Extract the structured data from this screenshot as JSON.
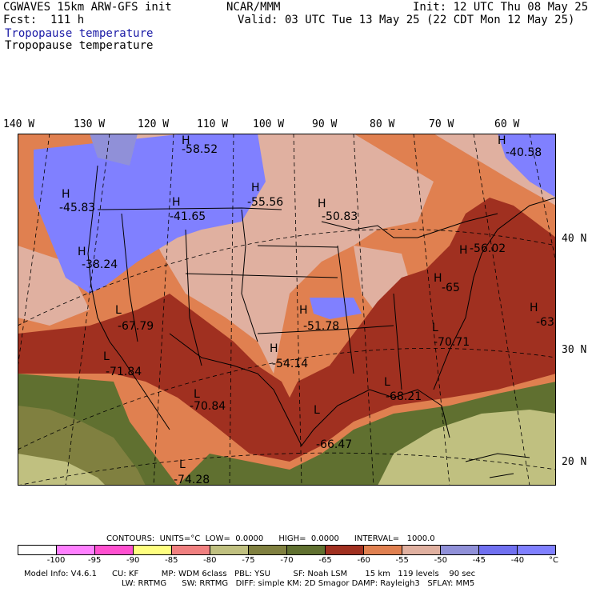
{
  "header": {
    "model": "CGWAVES 15km ARW-GFS init",
    "org": "NCAR/MMM",
    "init": "Init: 12 UTC Thu 08 May 25",
    "fcst": "Fcst:  111 h",
    "valid": "Valid: 03 UTC Tue 13 May 25 (22 CDT Mon 12 May 25)",
    "field1": "Tropopause temperature",
    "field2": "Tropopause temperature"
  },
  "lon_labels": [
    "140 W",
    "130 W",
    "120 W",
    "110 W",
    "100 W",
    "90 W",
    "80 W",
    "70 W",
    "60 W"
  ],
  "lat_labels": [
    "40 N",
    "30 N",
    "20 N"
  ],
  "extremes": [
    {
      "mark": "H",
      "value": "-58.52"
    },
    {
      "mark": "H",
      "value": "-40.58"
    },
    {
      "mark": "H",
      "value": "-45.83"
    },
    {
      "mark": "H",
      "value": "-41.65"
    },
    {
      "mark": "H",
      "value": "-55.56"
    },
    {
      "mark": "H",
      "value": "-50.83"
    },
    {
      "mark": "H",
      "value": "-38.24"
    },
    {
      "mark": "H",
      "value": "-51.78"
    },
    {
      "mark": "H",
      "value": "-54.14"
    },
    {
      "mark": "L",
      "value": "-67.79"
    },
    {
      "mark": "L",
      "value": "-71.84"
    },
    {
      "mark": "L",
      "value": "-70.84"
    },
    {
      "mark": "L",
      "value": "-66.47"
    },
    {
      "mark": "L",
      "value": "-68.21"
    },
    {
      "mark": "L",
      "value": "-70.71"
    },
    {
      "mark": "L",
      "value": "-74.28"
    },
    {
      "mark": "H",
      "value": "-63"
    },
    {
      "mark": "H",
      "value": "-56.02"
    },
    {
      "mark": "H",
      "value": "-65"
    }
  ],
  "contours": "CONTOURS:  UNITS=°C  LOW=  0.0000      HIGH=  0.0000      INTERVAL=   1000.0",
  "colorbar": {
    "colors": [
      "#ffffff",
      "#ff80ff",
      "#ff50d0",
      "#ffff80",
      "#f08080",
      "#c0c080",
      "#808040",
      "#607030",
      "#a03020",
      "#e08050",
      "#e0b0a0",
      "#9090d8",
      "#7070f0",
      "#8080ff"
    ],
    "ticks": [
      "-100",
      "-95",
      "-90",
      "-85",
      "-80",
      "-75",
      "-70",
      "-65",
      "-60",
      "-55",
      "-50",
      "-45",
      "-40"
    ],
    "unit": "°C"
  },
  "footer": {
    "line1": "Model Info: V4.6.1      CU: KF         MP: WDM 6class   PBL: YSU         SF: Noah LSM       15 km   119 levels    90 sec",
    "line2": "LW: RRTMG      SW: RRTMG   DIFF: simple KM: 2D Smagor DAMP: Rayleigh3   SFLAY: MM5"
  }
}
